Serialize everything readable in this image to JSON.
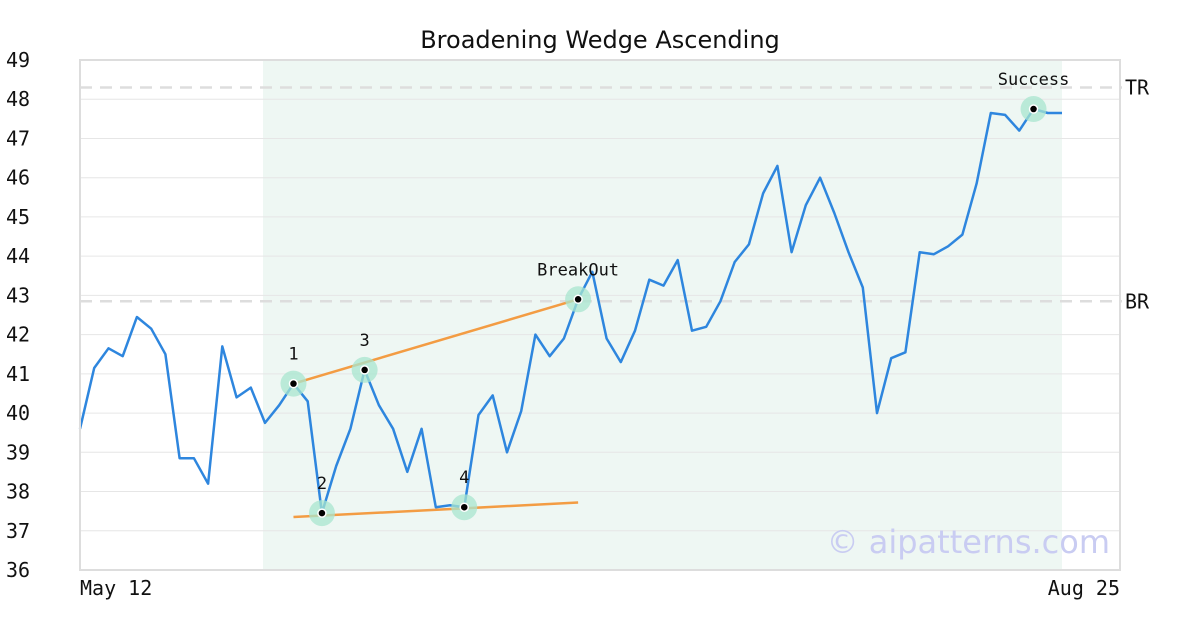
{
  "chart_data": {
    "type": "line",
    "title": "Broadening Wedge Ascending",
    "xlabel": "",
    "ylabel": "",
    "ylim": [
      36,
      49
    ],
    "yticks": [
      36,
      37,
      38,
      39,
      40,
      41,
      42,
      43,
      44,
      45,
      46,
      47,
      48,
      49
    ],
    "x_tick_labels": [
      "May 12",
      "Aug 25"
    ],
    "grid": true,
    "colors": {
      "line": "#2e86de",
      "trendline": "#f39c43",
      "marker_ring": "#a8e6cf",
      "pattern_region": "#eef7f3",
      "level_line": "#dddddd",
      "watermark": "#c9ccf2"
    },
    "series": [
      {
        "values": [
          39.6,
          41.15,
          41.65,
          41.45,
          42.45,
          42.15,
          41.5,
          38.85,
          38.85,
          38.2,
          41.7,
          40.4,
          40.65,
          39.75,
          40.2,
          40.75,
          40.3,
          37.45,
          38.65,
          39.6,
          41.1,
          40.2,
          39.6,
          38.5,
          39.6,
          37.6,
          37.65,
          37.6,
          39.95,
          40.45,
          39.0,
          40.05,
          42.0,
          41.45,
          41.9,
          42.9,
          43.6,
          41.9,
          41.3,
          42.1,
          43.4,
          43.25,
          43.9,
          42.1,
          42.2,
          42.85,
          43.85,
          44.3,
          45.6,
          46.3,
          44.1,
          45.3,
          46.0,
          45.1,
          44.1,
          43.2,
          40.0,
          41.4,
          41.55,
          44.1,
          44.05,
          44.25,
          44.55,
          45.85,
          47.65,
          47.6,
          47.2,
          47.75,
          47.65,
          47.65
        ]
      }
    ],
    "pattern_region": {
      "start_index": 13,
      "end_index": 69
    },
    "levels": [
      {
        "label": "TR",
        "value": 48.3
      },
      {
        "label": "BR",
        "value": 42.85
      }
    ],
    "trendlines": [
      {
        "from": {
          "index": 15,
          "value": 40.75
        },
        "to": {
          "index": 35,
          "value": 42.9
        }
      },
      {
        "from": {
          "index": 15,
          "value": 37.35
        },
        "to": {
          "index": 35,
          "value": 37.72
        }
      }
    ],
    "points": [
      {
        "label": "1",
        "index": 15,
        "value": 40.75
      },
      {
        "label": "2",
        "index": 17,
        "value": 37.45
      },
      {
        "label": "3",
        "index": 20,
        "value": 41.1
      },
      {
        "label": "4",
        "index": 27,
        "value": 37.6
      },
      {
        "label": "BreakOut",
        "index": 35,
        "value": 42.9
      },
      {
        "label": "Success",
        "index": 67,
        "value": 47.75
      }
    ],
    "watermark": "© aipatterns.com"
  }
}
